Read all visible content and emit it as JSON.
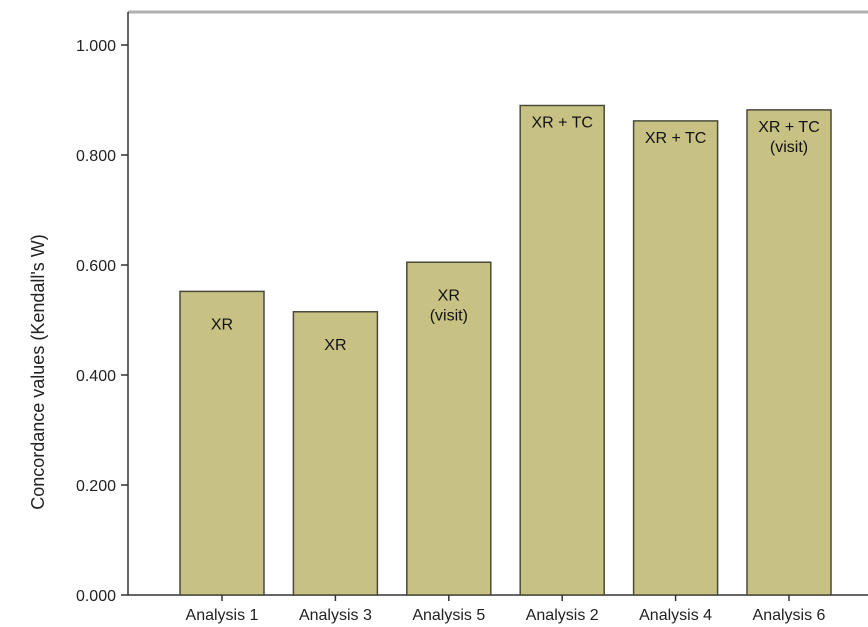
{
  "chart_data": {
    "type": "bar",
    "title": "",
    "xlabel": "",
    "ylabel": "Concordance values (Kendall's W)",
    "ylim": [
      0,
      1.1
    ],
    "yticks": [
      "0.000",
      "0.200",
      "0.400",
      "0.600",
      "0.800",
      "1.000"
    ],
    "categories": [
      "Analysis 1",
      "Analysis 3",
      "Analysis 5",
      "Analysis 2",
      "Analysis 4",
      "Analysis 6"
    ],
    "values": [
      0.552,
      0.515,
      0.605,
      0.89,
      0.862,
      0.882
    ],
    "bar_labels": [
      [
        "XR"
      ],
      [
        "XR"
      ],
      [
        "XR",
        "(visit)"
      ],
      [
        "XR + TC"
      ],
      [
        "XR + TC"
      ],
      [
        "XR + TC",
        "(visit)"
      ]
    ],
    "bar_color": "#c8c184",
    "bar_edge_color": "#4a4a3a",
    "grid": false,
    "legend": "none"
  }
}
